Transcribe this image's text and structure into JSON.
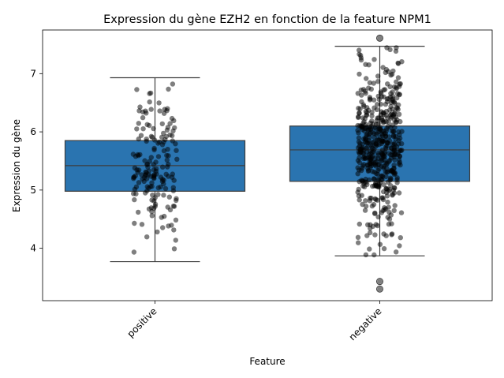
{
  "chart_data": {
    "type": "box",
    "title": "Expression du gène EZH2 en fonction de la feature NPM1",
    "xlabel": "Feature",
    "ylabel": "Expression du gène",
    "categories": [
      "positive",
      "negative"
    ],
    "ylim": [
      3.1,
      7.75
    ],
    "yticks": [
      4,
      5,
      6,
      7
    ],
    "grid": false,
    "colors": {
      "box": "#2a74b0",
      "edge": "#3d3d3d",
      "points": "#000000"
    },
    "boxes": [
      {
        "name": "positive",
        "whisker_low": 3.77,
        "q1": 4.98,
        "median": 5.42,
        "q3": 5.85,
        "whisker_high": 6.93,
        "outliers": []
      },
      {
        "name": "negative",
        "whisker_low": 3.87,
        "q1": 5.15,
        "median": 5.69,
        "q3": 6.1,
        "whisker_high": 7.47,
        "outliers": [
          7.61,
          3.43,
          3.3
        ]
      }
    ],
    "points_note": "strip overlay of individual samples",
    "strip_counts": [
      170,
      520
    ]
  }
}
